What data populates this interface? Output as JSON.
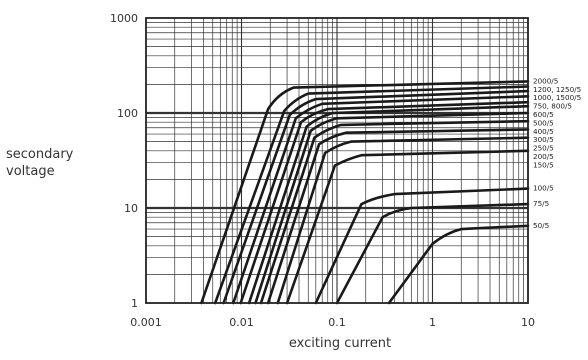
{
  "chart_data": {
    "type": "line",
    "title": "",
    "xlabel": "exciting current",
    "ylabel": "secondary voltage",
    "x_scale": "log",
    "y_scale": "log",
    "xlim": [
      0.001,
      10
    ],
    "ylim": [
      1,
      1000
    ],
    "x_ticks": [
      "0.001",
      "0.01",
      "0.1",
      "1",
      "10"
    ],
    "y_ticks": [
      "1",
      "10",
      "100",
      "1000"
    ],
    "grid": true,
    "series": [
      {
        "name": "2000/5",
        "x": [
          0.0038,
          0.019,
          0.024,
          0.035,
          10
        ],
        "y": [
          1,
          110,
          160,
          185,
          215
        ]
      },
      {
        "name": "1200, 1250/5",
        "x": [
          0.0053,
          0.028,
          0.036,
          0.05,
          10
        ],
        "y": [
          1,
          105,
          140,
          160,
          190
        ]
      },
      {
        "name": "1000, 1500/5",
        "x": [
          0.0065,
          0.032,
          0.042,
          0.06,
          10
        ],
        "y": [
          1,
          95,
          125,
          140,
          170
        ]
      },
      {
        "name": "750, 800/5",
        "x": [
          0.0082,
          0.037,
          0.048,
          0.07,
          10
        ],
        "y": [
          1,
          88,
          110,
          125,
          150
        ]
      },
      {
        "name": "600/5",
        "x": [
          0.0098,
          0.042,
          0.055,
          0.08,
          10
        ],
        "y": [
          1,
          80,
          100,
          110,
          130
        ]
      },
      {
        "name": "500/5",
        "x": [
          0.012,
          0.048,
          0.063,
          0.09,
          10
        ],
        "y": [
          1,
          72,
          90,
          100,
          118
        ]
      },
      {
        "name": "400/5",
        "x": [
          0.014,
          0.053,
          0.07,
          0.1,
          10
        ],
        "y": [
          1,
          65,
          80,
          88,
          100
        ]
      },
      {
        "name": "300/5",
        "x": [
          0.016,
          0.058,
          0.078,
          0.11,
          10
        ],
        "y": [
          1,
          55,
          68,
          75,
          82
        ]
      },
      {
        "name": "250/5",
        "x": [
          0.019,
          0.065,
          0.087,
          0.125,
          10
        ],
        "y": [
          1,
          47,
          57,
          62,
          67
        ]
      },
      {
        "name": "200/5",
        "x": [
          0.024,
          0.075,
          0.1,
          0.14,
          10
        ],
        "y": [
          1,
          38,
          46,
          50,
          55
        ]
      },
      {
        "name": "150/5",
        "x": [
          0.03,
          0.095,
          0.13,
          0.18,
          10
        ],
        "y": [
          1,
          28,
          33,
          36,
          40
        ]
      },
      {
        "name": "100/5",
        "x": [
          0.06,
          0.18,
          0.25,
          0.4,
          10
        ],
        "y": [
          1,
          11,
          13,
          14,
          16
        ]
      },
      {
        "name": "75/5",
        "x": [
          0.1,
          0.3,
          0.4,
          0.6,
          10
        ],
        "y": [
          1,
          8,
          9.5,
          10,
          11
        ]
      },
      {
        "name": "50/5",
        "x": [
          0.35,
          1.0,
          1.4,
          2.0,
          10
        ],
        "y": [
          1,
          4.2,
          5.5,
          6,
          6.5
        ]
      }
    ]
  }
}
